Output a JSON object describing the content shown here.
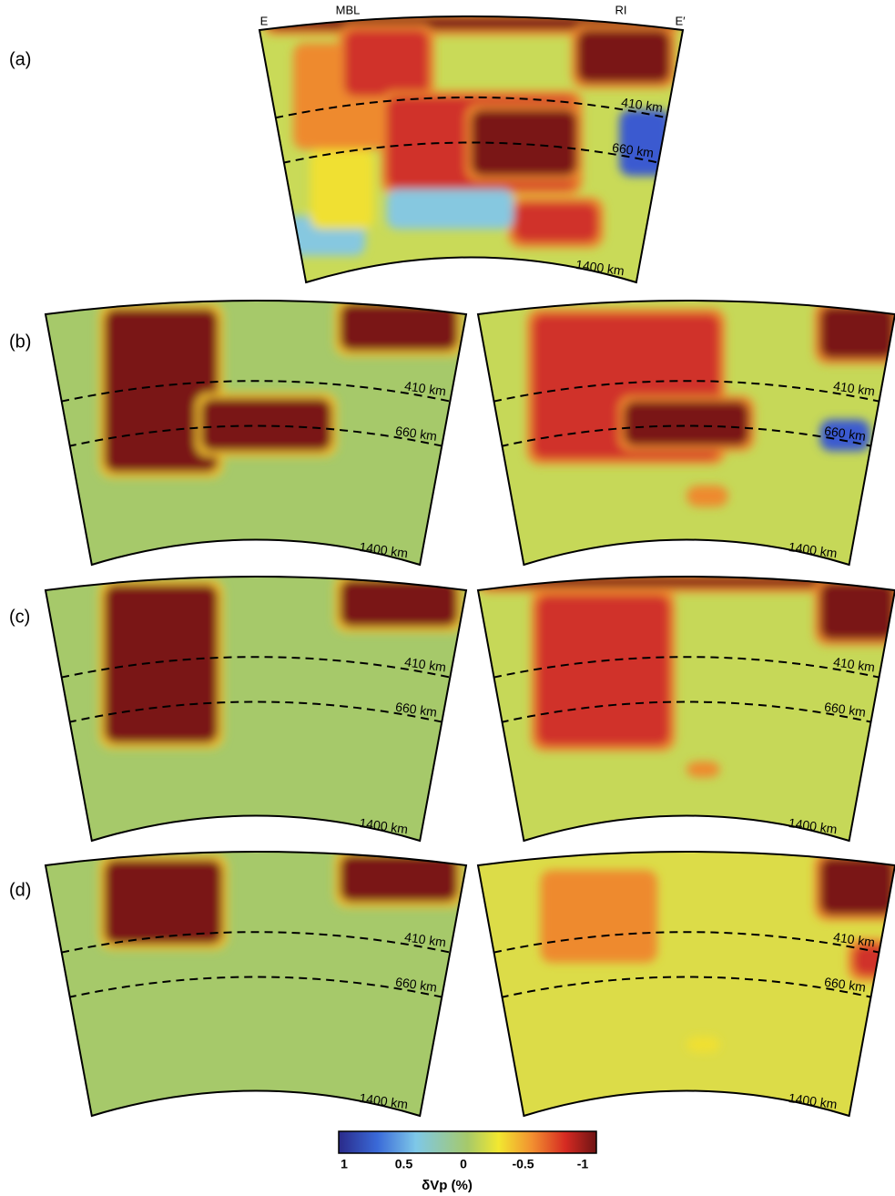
{
  "panel_labels": [
    "(a)",
    "(b)",
    "(c)",
    "(d)"
  ],
  "profile_labels": [
    "E",
    "MBL",
    "RI",
    "E′"
  ],
  "sections": [
    {
      "depth_labels": [
        "410 km",
        "660 km",
        "1400 km"
      ]
    },
    {
      "depth_labels": [
        "410 km",
        "660 km",
        "1400 km"
      ]
    },
    {
      "depth_labels": [
        "410 km",
        "660 km",
        "1400 km"
      ]
    },
    {
      "depth_labels": [
        "410 km",
        "660 km",
        "1400 km"
      ]
    },
    {
      "depth_labels": [
        "410 km",
        "660 km",
        "1400 km"
      ]
    },
    {
      "depth_labels": [
        "410 km",
        "660 km",
        "1400 km"
      ]
    },
    {
      "depth_labels": [
        "410 km",
        "660 km",
        "1400 km"
      ]
    }
  ],
  "colorbar": {
    "ticks": [
      "1",
      "0.5",
      "0",
      "-0.5",
      "-1"
    ],
    "label": "δVp (%)"
  }
}
